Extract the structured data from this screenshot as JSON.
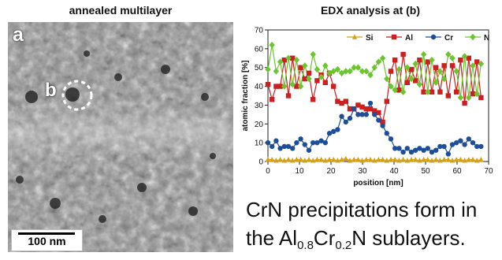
{
  "left_panel": {
    "title": "annealed multilayer",
    "panel_letter": "a",
    "point_label": "b",
    "scale_bar_label": "100 nm"
  },
  "right_panel": {
    "title": "EDX analysis at (b)"
  },
  "chart_data": {
    "type": "line",
    "xlabel": "position [nm]",
    "ylabel": "atomic fraction [%]",
    "xlim": [
      0,
      70
    ],
    "ylim": [
      0,
      70
    ],
    "xticks": [
      0,
      10,
      20,
      30,
      40,
      50,
      60,
      70
    ],
    "yticks": [
      0,
      10,
      20,
      30,
      40,
      50,
      60,
      70
    ],
    "legend_position": "top-right",
    "x": [
      0,
      1.3,
      2.6,
      3.9,
      5.2,
      6.5,
      7.8,
      9.1,
      10.4,
      11.7,
      13,
      14.3,
      15.6,
      16.9,
      18.2,
      19.5,
      20.8,
      22.1,
      23.4,
      24.7,
      26,
      27.3,
      28.6,
      29.9,
      31.2,
      32.5,
      33.8,
      35.1,
      36.4,
      37.7,
      39,
      40.3,
      41.6,
      42.9,
      44.2,
      45.5,
      46.8,
      48.1,
      49.4,
      50.7,
      52,
      53.3,
      54.6,
      55.9,
      57.2,
      58.5,
      59.8,
      61.1,
      62.4,
      63.7,
      65,
      66.3,
      67.6
    ],
    "series": [
      {
        "name": "Si",
        "color": "#d4a017",
        "marker": "triangle",
        "values": [
          1,
          1,
          0.5,
          1,
          0.5,
          1,
          0.5,
          1,
          1,
          0.5,
          1,
          0.5,
          1,
          1,
          0.5,
          1,
          1,
          0.5,
          1,
          1.5,
          0.5,
          1,
          1,
          0.5,
          1,
          1,
          0.5,
          1,
          1,
          0.5,
          1,
          1,
          0.5,
          1,
          0.5,
          1,
          1,
          0.5,
          1,
          1,
          0.5,
          1,
          0.5,
          1,
          1,
          0.5,
          1,
          1,
          0.5,
          1,
          1,
          0.5,
          1
        ]
      },
      {
        "name": "Al",
        "color": "#cc1f1f",
        "marker": "square",
        "values": [
          41,
          33,
          40,
          40,
          54,
          35,
          55,
          40,
          50,
          44,
          47,
          33,
          43,
          46,
          42,
          47,
          40,
          32,
          31,
          32,
          28,
          28,
          30,
          29,
          28,
          28,
          27,
          26,
          21,
          32,
          48,
          54,
          38,
          57,
          42,
          49,
          43,
          54,
          37,
          53,
          37,
          50,
          37,
          51,
          35,
          51,
          37,
          54,
          31,
          55,
          36,
          53,
          34
        ]
      },
      {
        "name": "Cr",
        "color": "#1f4e99",
        "marker": "circle",
        "values": [
          10,
          8,
          11,
          7,
          8,
          8,
          7,
          10,
          12,
          9,
          6,
          10,
          10,
          11,
          10,
          15,
          16,
          17,
          24,
          21,
          23,
          28,
          25,
          25,
          25,
          31,
          25,
          22,
          19,
          15,
          12,
          7,
          7,
          5,
          7,
          5,
          6,
          7,
          6,
          7,
          5,
          6,
          8,
          8,
          4,
          9,
          10,
          11,
          9,
          12,
          10,
          8,
          8
        ]
      },
      {
        "name": "N",
        "color": "#6cc52e",
        "marker": "diamond",
        "values": [
          49,
          62,
          48,
          53,
          40,
          55,
          41,
          54,
          40,
          51,
          44,
          57,
          49,
          45,
          51,
          47,
          48,
          49,
          47,
          48,
          48,
          50,
          50,
          48,
          48,
          46,
          50,
          53,
          55,
          44,
          40,
          38,
          49,
          37,
          50,
          44,
          52,
          41,
          57,
          37,
          54,
          42,
          48,
          44,
          57,
          55,
          48,
          34,
          56,
          34,
          51,
          36,
          52
        ]
      }
    ]
  },
  "caption": {
    "line1": "CrN precipitations form in",
    "line2_prefix": "the Al",
    "sub1": "0.8",
    "mid": "Cr",
    "sub2": "0.2",
    "line2_suffix": "N sublayers."
  }
}
